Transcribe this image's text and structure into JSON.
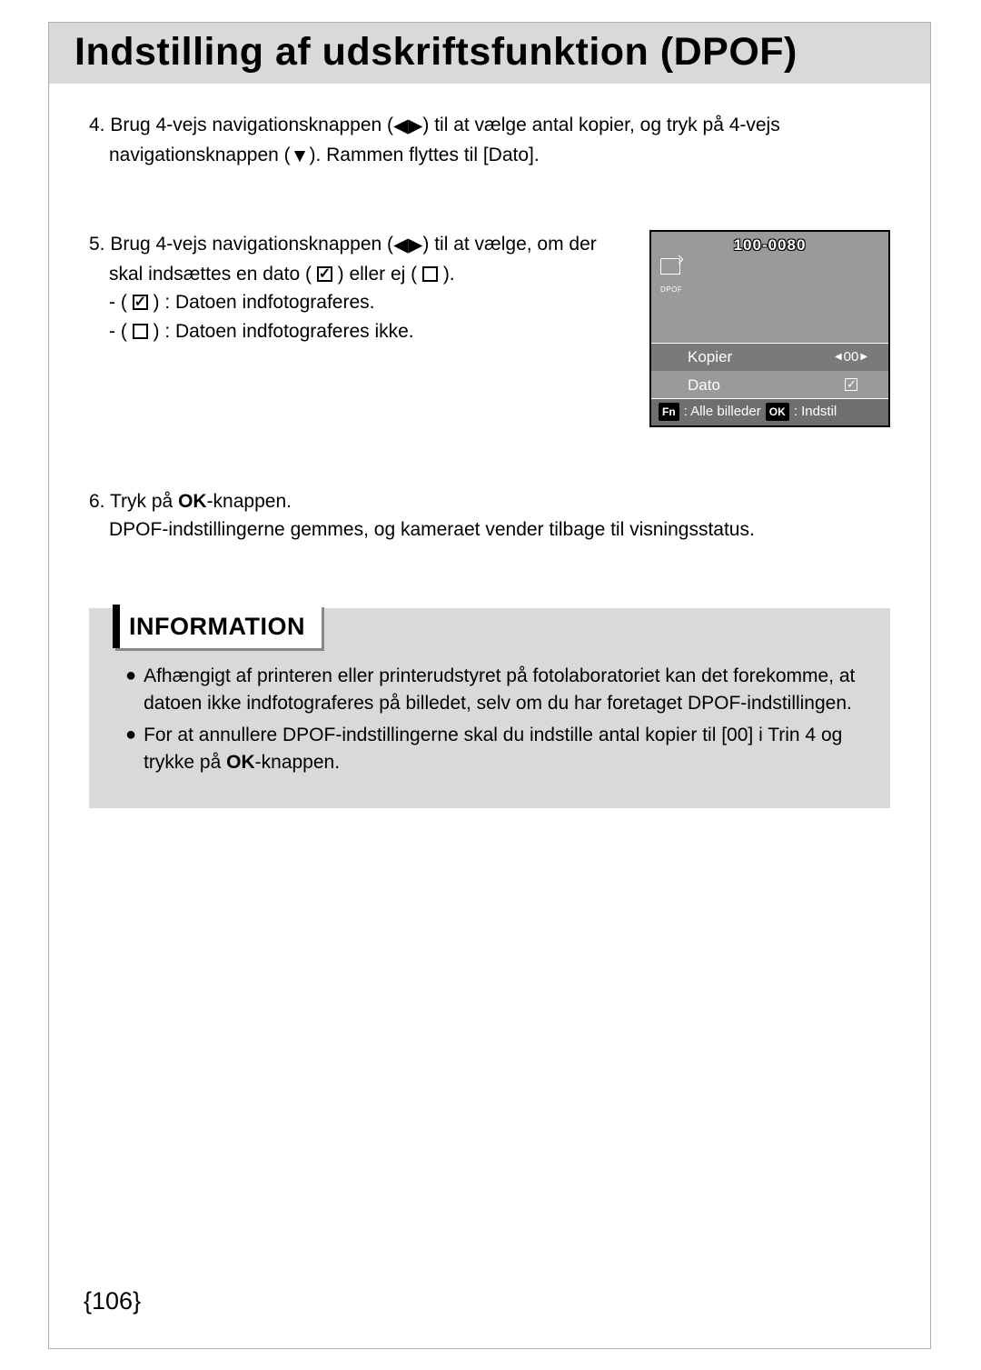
{
  "title": "Indstilling af udskriftsfunktion (DPOF)",
  "step4": {
    "num": "4.",
    "line1a": "Brug 4-vejs navigationsknappen (",
    "line1b": ") til at vælge antal kopier, og tryk på 4-vejs",
    "line2a": "navigationsknappen (",
    "line2b": "). Rammen flyttes til [Dato]."
  },
  "step5": {
    "num": "5.",
    "line1a": "Brug 4-vejs navigationsknappen (",
    "line1b": ") til at vælge, om der",
    "line2a": "skal indsættes en dato ( ",
    "line2b": " ) eller ej ( ",
    "line2c": " ).",
    "opt1a": "- ( ",
    "opt1b": " ) : Datoen indfotograferes.",
    "opt2a": "- ( ",
    "opt2b": " ) : Datoen indfotograferes ikke."
  },
  "lcd": {
    "filenum": "100-0080",
    "dpof_label": "DPOF",
    "row1_label": "Kopier",
    "row1_value": "00",
    "row2_label": "Dato",
    "fn_btn": "Fn",
    "fn_text": ": Alle billeder",
    "ok_btn": "OK",
    "ok_text": ": Indstil"
  },
  "step6": {
    "num": "6.",
    "line1a": "Tryk på ",
    "line1b": "OK",
    "line1c": "-knappen.",
    "line2": "DPOF-indstillingerne gemmes, og kameraet vender tilbage til visningsstatus."
  },
  "info": {
    "heading": "INFORMATION",
    "b1": "Afhængigt af printeren eller printerudstyret på fotolaboratoriet kan det forekomme, at datoen ikke indfotograferes på billedet, selv om du har foretaget DPOF-indstillingen.",
    "b2a": "For at annullere DPOF-indstillingerne skal du indstille antal kopier til [00] i Trin 4 og trykke på ",
    "b2b": "OK",
    "b2c": "-knappen."
  },
  "pagenum": "{106}"
}
